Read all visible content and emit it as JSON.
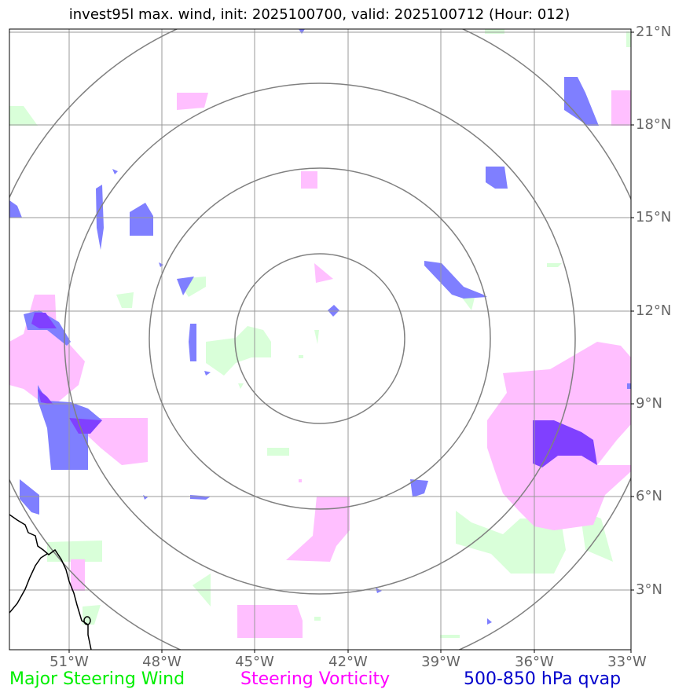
{
  "title": "invest95l max. wind, init: 2025100700, valid: 2025100712 (Hour: 012)",
  "lat_ticks": [
    "21°N",
    "18°N",
    "15°N",
    "12°N",
    "9°N",
    "6°N",
    "3°N"
  ],
  "lon_ticks": [
    "51°W",
    "48°W",
    "45°W",
    "42°W",
    "39°W",
    "36°W",
    "33°W"
  ],
  "legend": {
    "wind": {
      "label": "Major Steering Wind",
      "color": "#00ee00"
    },
    "vorticity": {
      "label": "Steering Vorticity",
      "color": "#ff00ff"
    },
    "qvap": {
      "label": "500-850 hPa qvap",
      "color": "#0000cc"
    }
  },
  "colors": {
    "grid": "#999999",
    "rings": "#808080",
    "wind_fill": "#d9ffd9",
    "vort_fill": "#ffbfff",
    "qvap_fill": "#7f7fff",
    "overlap_fill": "#8040ff",
    "coast": "#000000"
  }
}
